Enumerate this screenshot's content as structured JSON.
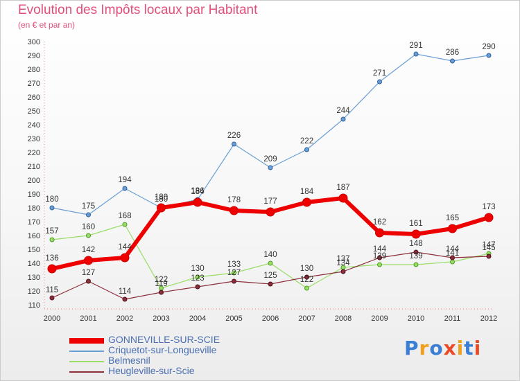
{
  "title": "Evolution des Impôts locaux par Habitant",
  "subtitle": "(en € et par an)",
  "chart_data": {
    "type": "line",
    "title": "Evolution des Impôts locaux par Habitant",
    "subtitle": "(en € et par an)",
    "x": [
      2000,
      2001,
      2002,
      2003,
      2004,
      2005,
      2006,
      2007,
      2008,
      2009,
      2010,
      2011,
      2012
    ],
    "ylim": [
      110,
      300
    ],
    "yticks": [
      110,
      120,
      130,
      140,
      150,
      160,
      170,
      180,
      190,
      200,
      210,
      220,
      230,
      240,
      250,
      260,
      270,
      280,
      290,
      300
    ],
    "grid": false,
    "legend_position": "bottom-left",
    "series": [
      {
        "name": "GONNEVILLE-SUR-SCIE",
        "color": "#ee0000",
        "values": [
          136,
          142,
          144,
          180,
          184,
          178,
          177,
          184,
          187,
          162,
          161,
          165,
          173
        ],
        "labels": [
          "136",
          "142",
          "144",
          "180",
          "184",
          "178",
          "177",
          "184",
          "187",
          "162",
          "161",
          "165",
          "173"
        ]
      },
      {
        "name": "Criquetot-sur-Longueville",
        "color": "#6a9fd6",
        "values": [
          180,
          175,
          194,
          180,
          186,
          226,
          209,
          222,
          244,
          271,
          291,
          286,
          290
        ],
        "labels": [
          "180",
          "175",
          "194",
          "180",
          "186",
          "226",
          "209",
          "222",
          "244",
          "271",
          "291",
          "286",
          "290"
        ]
      },
      {
        "name": "Belmesnil",
        "color": "#99dd66",
        "values": [
          157,
          160,
          168,
          122,
          130,
          133,
          140,
          122,
          137,
          139,
          139,
          141,
          147
        ],
        "labels": [
          "157",
          "160",
          "168",
          "122",
          "130",
          "133",
          "140",
          "122",
          "137",
          "139",
          "139",
          "141",
          "147"
        ]
      },
      {
        "name": "Heugleville-sur-Scie",
        "color": "#8b2f3a",
        "values": [
          115,
          127,
          114,
          119,
          123,
          127,
          125,
          130,
          134,
          144,
          148,
          144,
          145
        ],
        "labels": [
          "115",
          "127",
          "114",
          "119",
          "123",
          "127",
          "125",
          "130",
          "134",
          "144",
          "148",
          "144",
          "145"
        ]
      }
    ]
  },
  "logo": {
    "text": "Proxiti",
    "letter_colors": [
      "#3a7fd5",
      "#f0a020",
      "#3a7fd5",
      "#e84b2a",
      "#f0a020",
      "#3a7fd5",
      "#e84b2a"
    ]
  }
}
